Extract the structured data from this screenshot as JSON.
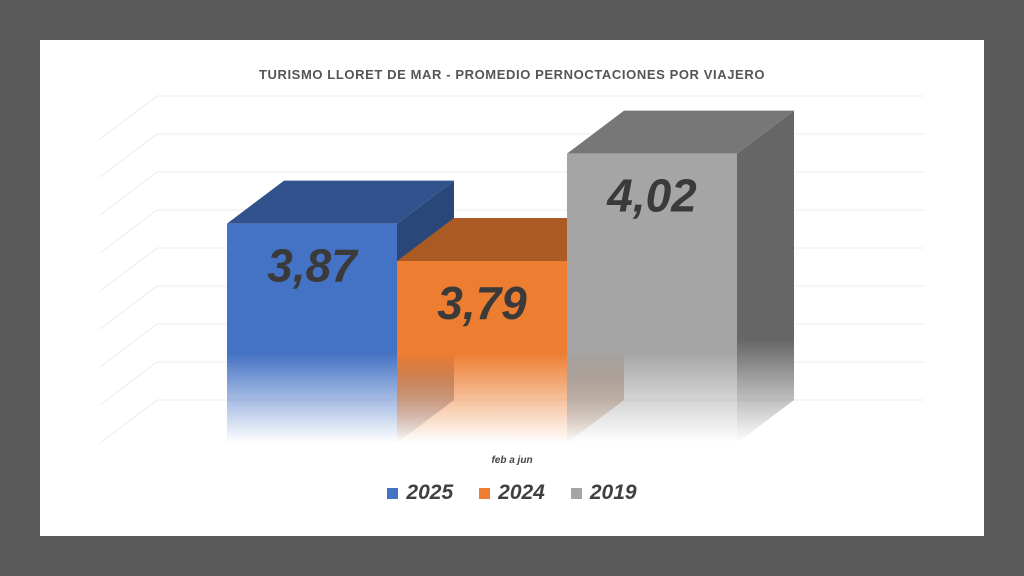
{
  "chart_data": {
    "type": "bar",
    "title": "TURISMO LLORET DE MAR - PROMEDIO PERNOCTACIONES POR VIAJERO",
    "categories": [
      "feb a jun"
    ],
    "series": [
      {
        "name": "2025",
        "values": [
          3.87
        ],
        "label": "3,87",
        "color": "#4472c4"
      },
      {
        "name": "2024",
        "values": [
          3.79
        ],
        "label": "3,79",
        "color": "#ed7d31"
      },
      {
        "name": "2019",
        "values": [
          4.02
        ],
        "label": "4,02",
        "color": "#a5a5a5"
      }
    ],
    "render_3d": true,
    "grid": true,
    "legend_position": "bottom"
  }
}
